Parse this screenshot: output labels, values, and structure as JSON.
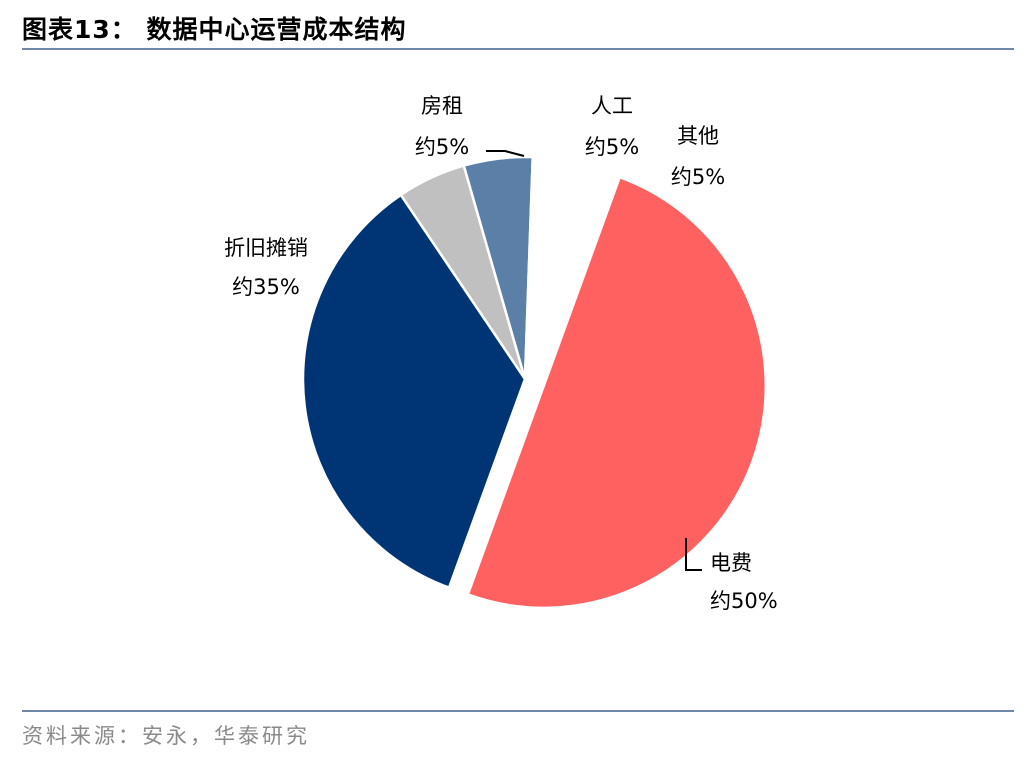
{
  "header": {
    "title": "图表13： 数据中心运营成本结构"
  },
  "footer": {
    "source": "资料来源：安永，华泰研究"
  },
  "chart_data": {
    "type": "pie",
    "title": "数据中心运营成本结构",
    "slices": [
      {
        "name": "电费",
        "value": 50,
        "value_label": "约50%",
        "color": "#ff6161",
        "exploded": true
      },
      {
        "name": "折旧摊销",
        "value": 35,
        "value_label": "约35%",
        "color": "#003575",
        "exploded": false
      },
      {
        "name": "房租",
        "value": 5,
        "value_label": "约5%",
        "color": "#c0c0c0",
        "exploded": false
      },
      {
        "name": "人工",
        "value": 5,
        "value_label": "约5%",
        "color": "#5b7fa7",
        "exploded": false
      },
      {
        "name": "其他",
        "value": 5,
        "value_label": "约5%",
        "color": "#ffffff",
        "exploded": false
      }
    ]
  }
}
